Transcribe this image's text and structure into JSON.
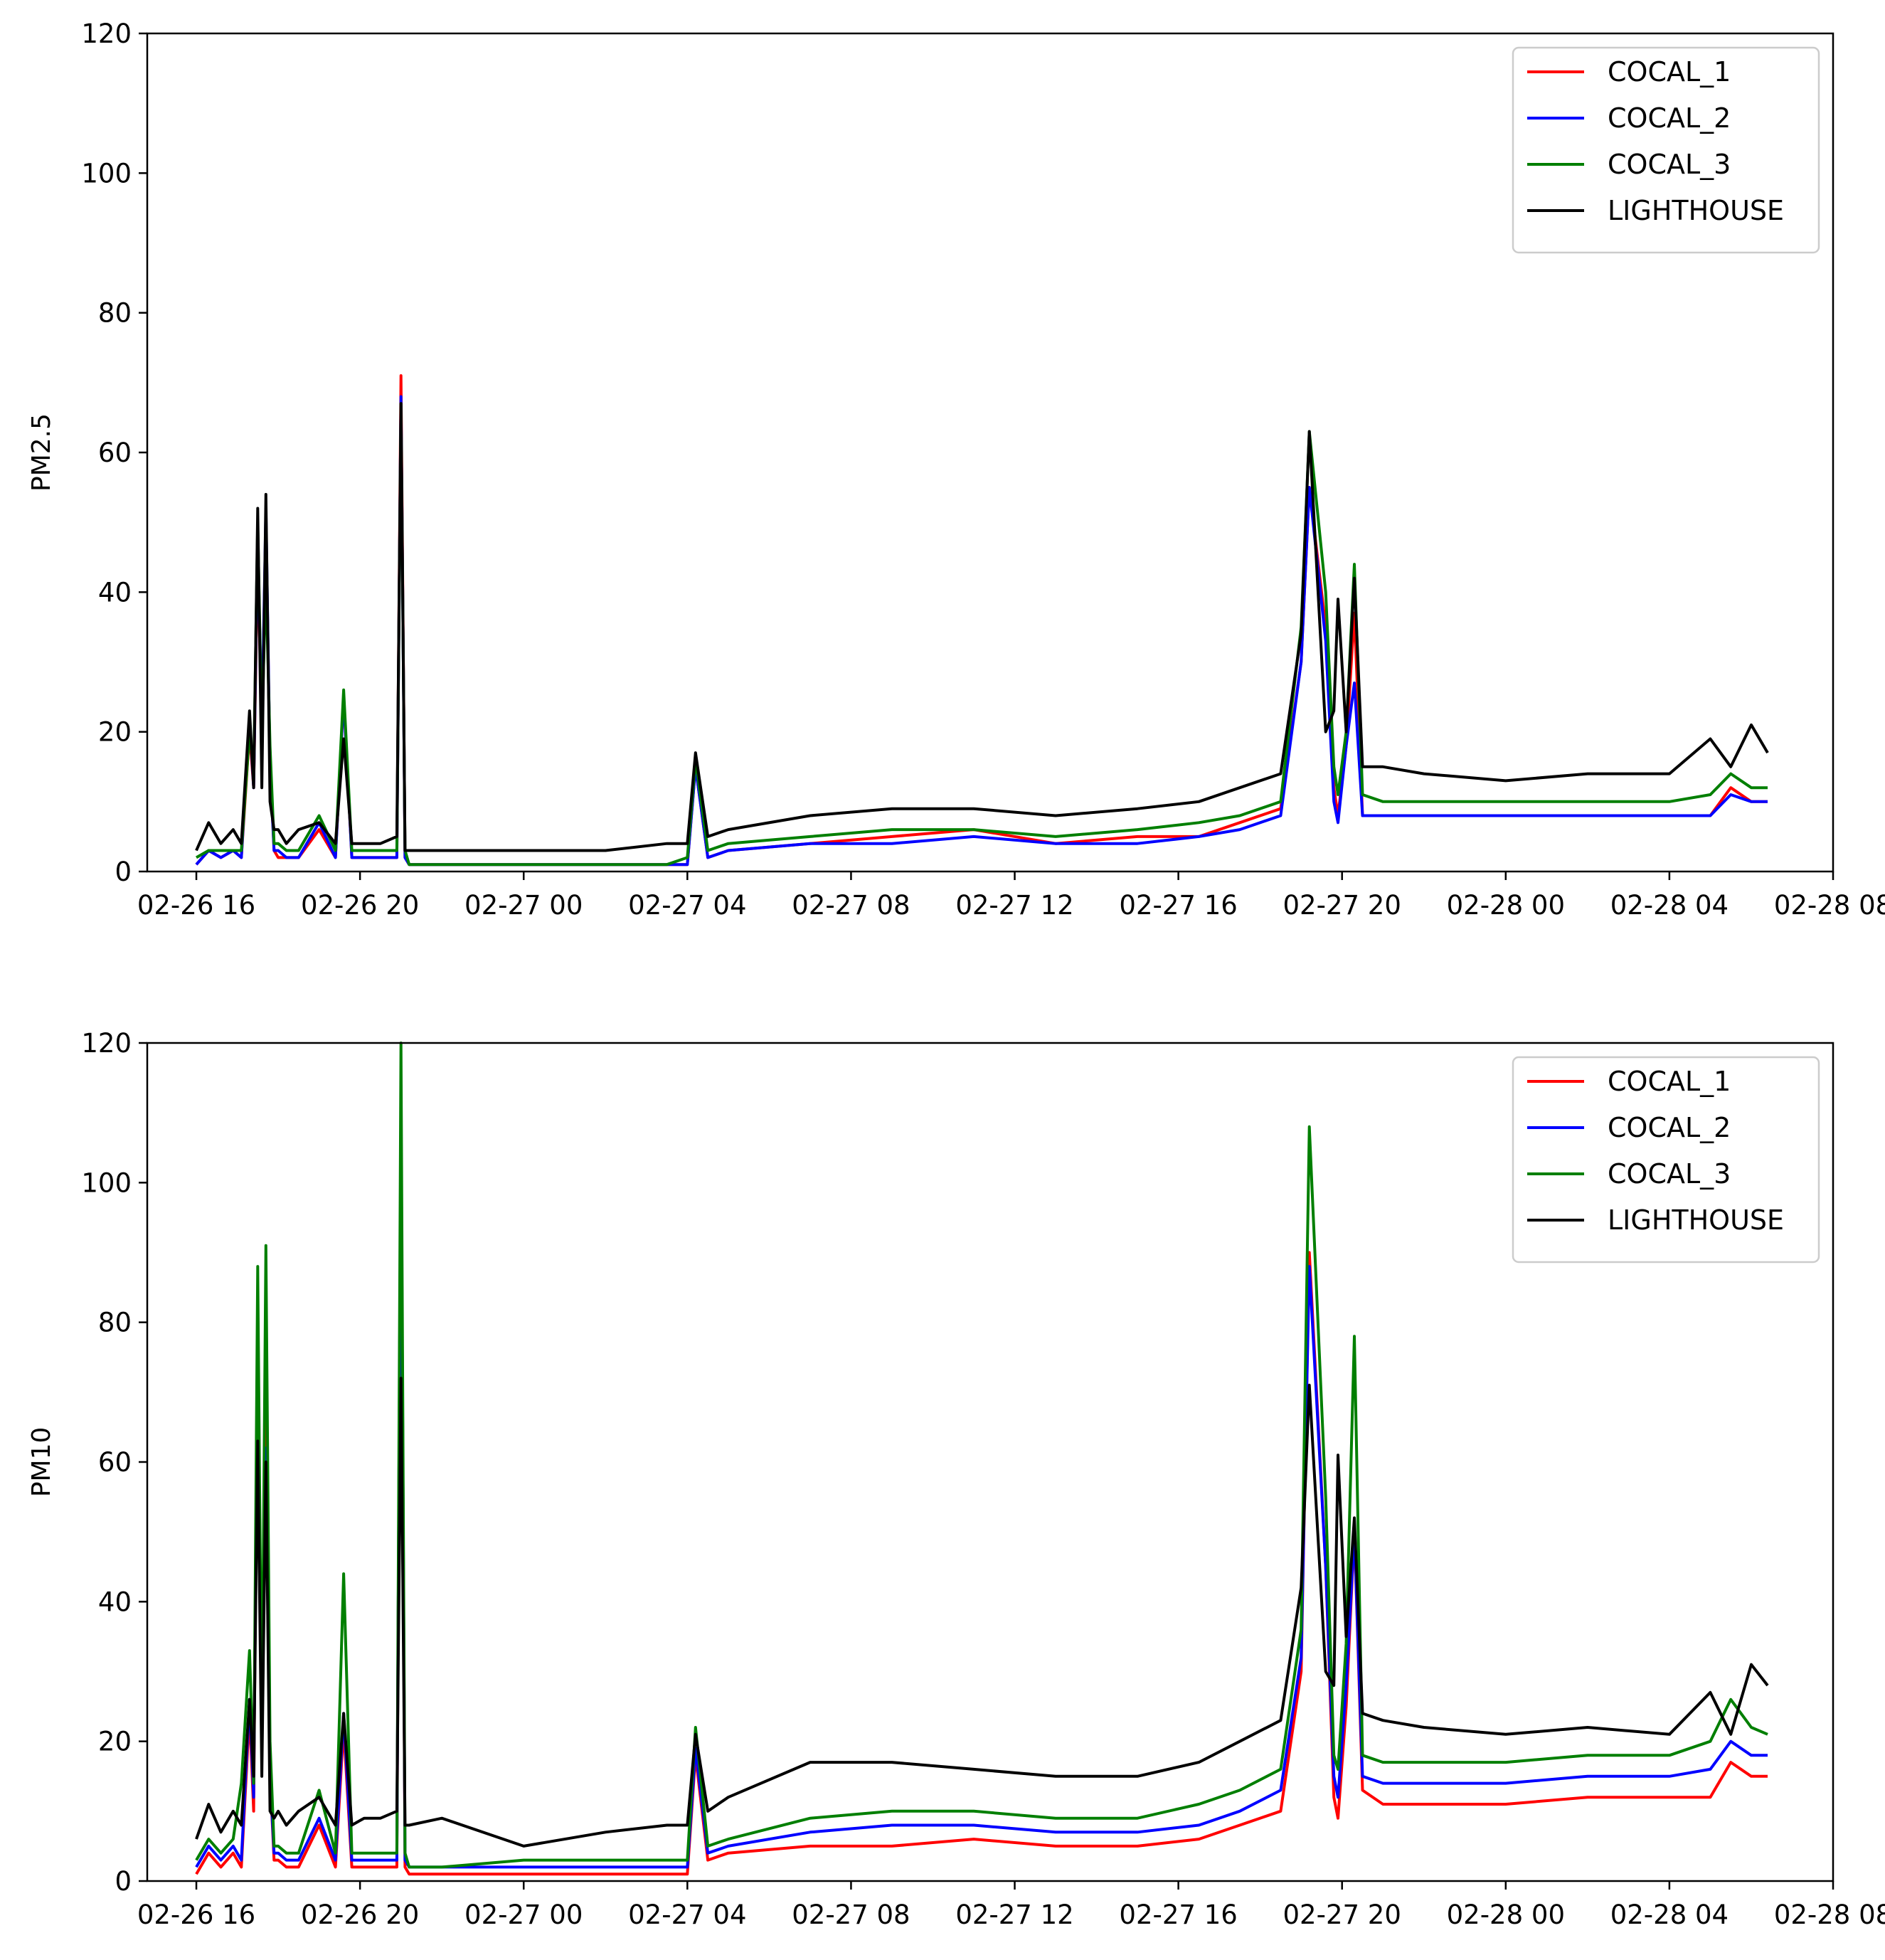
{
  "chart_data": [
    {
      "type": "line",
      "ylabel": "PM2.5",
      "xlabel": "",
      "ylim": [
        0,
        120
      ],
      "yticks": [
        "0",
        "20",
        "40",
        "60",
        "80",
        "100",
        "120"
      ],
      "xlim_hours": [
        -1.2,
        40.0
      ],
      "xticks": [
        {
          "hour": 0,
          "label": "02-26 16"
        },
        {
          "hour": 4,
          "label": "02-26 20"
        },
        {
          "hour": 8,
          "label": "02-27 00"
        },
        {
          "hour": 12,
          "label": "02-27 04"
        },
        {
          "hour": 16,
          "label": "02-27 08"
        },
        {
          "hour": 20,
          "label": "02-27 12"
        },
        {
          "hour": 24,
          "label": "02-27 16"
        },
        {
          "hour": 28,
          "label": "02-27 20"
        },
        {
          "hour": 32,
          "label": "02-28 00"
        },
        {
          "hour": 36,
          "label": "02-28 04"
        },
        {
          "hour": 40,
          "label": "02-28 08"
        }
      ],
      "legend_position": "top-right",
      "x_unit": "hours since 02-26 16:00",
      "series": [
        {
          "name": "COCAL_1",
          "color": "#ff0000",
          "x": [
            0,
            0.3,
            0.6,
            0.9,
            1.1,
            1.3,
            1.4,
            1.5,
            1.6,
            1.7,
            1.8,
            1.9,
            2.0,
            2.2,
            2.5,
            3.0,
            3.4,
            3.6,
            3.8,
            4.1,
            4.5,
            4.9,
            5.0,
            5.1,
            5.2,
            6,
            8,
            10,
            11.5,
            12.0,
            12.2,
            12.5,
            13,
            15,
            17,
            19,
            21,
            23,
            24.5,
            25.5,
            26.5,
            27.0,
            27.2,
            27.6,
            27.8,
            27.9,
            28.1,
            28.3,
            28.5,
            29,
            30,
            32,
            34,
            36,
            37,
            37.5,
            38.0,
            38.4
          ],
          "y": [
            1,
            3,
            2,
            3,
            2,
            20,
            12,
            45,
            20,
            50,
            15,
            3,
            2,
            2,
            2,
            6,
            2,
            25,
            2,
            2,
            2,
            2,
            71,
            2,
            1,
            1,
            1,
            1,
            1,
            1,
            15,
            2,
            3,
            4,
            5,
            6,
            4,
            5,
            5,
            7,
            9,
            30,
            55,
            35,
            12,
            8,
            18,
            37,
            8,
            8,
            8,
            8,
            8,
            8,
            8,
            12,
            10,
            10
          ]
        },
        {
          "name": "COCAL_2",
          "color": "#0000ff",
          "x": [
            0,
            0.3,
            0.6,
            0.9,
            1.1,
            1.3,
            1.4,
            1.5,
            1.6,
            1.7,
            1.8,
            1.9,
            2.0,
            2.2,
            2.5,
            3.0,
            3.4,
            3.6,
            3.8,
            4.1,
            4.5,
            4.9,
            5.0,
            5.1,
            5.2,
            6,
            8,
            10,
            11.5,
            12.0,
            12.2,
            12.5,
            13,
            15,
            17,
            19,
            21,
            23,
            24.5,
            25.5,
            26.5,
            27.0,
            27.2,
            27.6,
            27.8,
            27.9,
            28.1,
            28.3,
            28.5,
            29,
            30,
            32,
            34,
            36,
            37,
            37.5,
            38.0,
            38.4
          ],
          "y": [
            1,
            3,
            2,
            3,
            2,
            22,
            12,
            48,
            20,
            52,
            15,
            3,
            3,
            2,
            2,
            7,
            2,
            25,
            2,
            2,
            2,
            2,
            68,
            2,
            1,
            1,
            1,
            1,
            1,
            1,
            15,
            2,
            3,
            4,
            4,
            5,
            4,
            4,
            5,
            6,
            8,
            30,
            55,
            33,
            10,
            7,
            18,
            27,
            8,
            8,
            8,
            8,
            8,
            8,
            8,
            11,
            10,
            10
          ]
        },
        {
          "name": "COCAL_3",
          "color": "#007f00",
          "x": [
            0,
            0.3,
            0.6,
            0.9,
            1.1,
            1.3,
            1.4,
            1.5,
            1.6,
            1.7,
            1.8,
            1.9,
            2.0,
            2.2,
            2.5,
            3.0,
            3.4,
            3.6,
            3.8,
            4.1,
            4.5,
            4.9,
            5.0,
            5.1,
            5.2,
            6,
            8,
            10,
            11.5,
            12.0,
            12.2,
            12.5,
            13,
            15,
            17,
            19,
            21,
            23,
            24.5,
            25.5,
            26.5,
            27.0,
            27.2,
            27.6,
            27.8,
            27.9,
            28.1,
            28.3,
            28.5,
            29,
            30,
            32,
            34,
            36,
            37,
            37.5,
            38.0,
            38.4
          ],
          "y": [
            2,
            3,
            3,
            3,
            3,
            20,
            14,
            50,
            20,
            42,
            18,
            4,
            4,
            3,
            3,
            8,
            3,
            26,
            3,
            3,
            3,
            3,
            67,
            3,
            1,
            1,
            1,
            1,
            1,
            2,
            16,
            3,
            4,
            5,
            6,
            6,
            5,
            6,
            7,
            8,
            10,
            35,
            63,
            40,
            15,
            11,
            20,
            44,
            11,
            10,
            10,
            10,
            10,
            10,
            11,
            14,
            12,
            12
          ]
        },
        {
          "name": "LIGHTHOUSE",
          "color": "#000000",
          "x": [
            0,
            0.3,
            0.6,
            0.9,
            1.1,
            1.3,
            1.4,
            1.5,
            1.6,
            1.7,
            1.8,
            1.9,
            2.0,
            2.2,
            2.5,
            3.0,
            3.4,
            3.6,
            3.8,
            4.1,
            4.5,
            4.9,
            5.0,
            5.1,
            5.2,
            6,
            8,
            10,
            11.5,
            12.0,
            12.2,
            12.5,
            13,
            15,
            17,
            19,
            21,
            23,
            24.5,
            25.5,
            26.5,
            27.0,
            27.2,
            27.6,
            27.8,
            27.9,
            28.1,
            28.3,
            28.5,
            29,
            30,
            32,
            34,
            36,
            37,
            37.5,
            38.0,
            38.4
          ],
          "y": [
            3,
            7,
            4,
            6,
            4,
            23,
            12,
            52,
            12,
            54,
            10,
            6,
            6,
            4,
            6,
            7,
            4,
            19,
            4,
            4,
            4,
            5,
            67,
            3,
            3,
            3,
            3,
            3,
            4,
            4,
            17,
            5,
            6,
            8,
            9,
            9,
            8,
            9,
            10,
            12,
            14,
            34,
            63,
            20,
            23,
            39,
            20,
            42,
            15,
            15,
            14,
            13,
            14,
            14,
            19,
            15,
            21,
            17
          ]
        }
      ]
    },
    {
      "type": "line",
      "ylabel": "PM10",
      "xlabel": "",
      "ylim": [
        0,
        120
      ],
      "yticks": [
        "0",
        "20",
        "40",
        "60",
        "80",
        "100",
        "120"
      ],
      "xlim_hours": [
        -1.2,
        40.0
      ],
      "xticks": [
        {
          "hour": 0,
          "label": "02-26 16"
        },
        {
          "hour": 4,
          "label": "02-26 20"
        },
        {
          "hour": 8,
          "label": "02-27 00"
        },
        {
          "hour": 12,
          "label": "02-27 04"
        },
        {
          "hour": 16,
          "label": "02-27 08"
        },
        {
          "hour": 20,
          "label": "02-27 12"
        },
        {
          "hour": 24,
          "label": "02-27 16"
        },
        {
          "hour": 28,
          "label": "02-27 20"
        },
        {
          "hour": 32,
          "label": "02-28 00"
        },
        {
          "hour": 36,
          "label": "02-28 04"
        },
        {
          "hour": 40,
          "label": "02-28 08"
        }
      ],
      "legend_position": "top-right",
      "x_unit": "hours since 02-26 16:00",
      "series": [
        {
          "name": "COCAL_1",
          "color": "#ff0000",
          "x": [
            0,
            0.3,
            0.6,
            0.9,
            1.1,
            1.3,
            1.4,
            1.5,
            1.6,
            1.7,
            1.8,
            1.9,
            2.0,
            2.2,
            2.5,
            3.0,
            3.4,
            3.6,
            3.8,
            4.1,
            4.5,
            4.9,
            5.0,
            5.1,
            5.2,
            6,
            8,
            10,
            11.5,
            12.0,
            12.2,
            12.5,
            13,
            15,
            17,
            19,
            21,
            23,
            24.5,
            25.5,
            26.5,
            27.0,
            27.2,
            27.6,
            27.8,
            27.9,
            28.1,
            28.3,
            28.5,
            29,
            30,
            32,
            34,
            36,
            37,
            37.5,
            38.0,
            38.4
          ],
          "y": [
            1,
            4,
            2,
            4,
            2,
            24,
            10,
            80,
            20,
            80,
            15,
            3,
            3,
            2,
            2,
            8,
            2,
            22,
            2,
            2,
            2,
            2,
            110,
            2,
            1,
            1,
            1,
            1,
            1,
            1,
            18,
            3,
            4,
            5,
            5,
            6,
            5,
            5,
            6,
            8,
            10,
            30,
            90,
            45,
            12,
            9,
            25,
            50,
            13,
            11,
            11,
            11,
            12,
            12,
            12,
            17,
            15,
            15
          ]
        },
        {
          "name": "COCAL_2",
          "color": "#0000ff",
          "x": [
            0,
            0.3,
            0.6,
            0.9,
            1.1,
            1.3,
            1.4,
            1.5,
            1.6,
            1.7,
            1.8,
            1.9,
            2.0,
            2.2,
            2.5,
            3.0,
            3.4,
            3.6,
            3.8,
            4.1,
            4.5,
            4.9,
            5.0,
            5.1,
            5.2,
            6,
            8,
            10,
            11.5,
            12.0,
            12.2,
            12.5,
            13,
            15,
            17,
            19,
            21,
            23,
            24.5,
            25.5,
            26.5,
            27.0,
            27.2,
            27.6,
            27.8,
            27.9,
            28.1,
            28.3,
            28.5,
            29,
            30,
            32,
            34,
            36,
            37,
            37.5,
            38.0,
            38.4
          ],
          "y": [
            2,
            5,
            3,
            5,
            3,
            26,
            12,
            78,
            20,
            62,
            15,
            4,
            4,
            3,
            3,
            9,
            3,
            24,
            3,
            3,
            3,
            3,
            110,
            3,
            2,
            2,
            2,
            2,
            2,
            2,
            19,
            4,
            5,
            7,
            8,
            8,
            7,
            7,
            8,
            10,
            13,
            32,
            88,
            45,
            15,
            12,
            28,
            50,
            15,
            14,
            14,
            14,
            15,
            15,
            16,
            20,
            18,
            18
          ]
        },
        {
          "name": "COCAL_3",
          "color": "#007f00",
          "x": [
            0,
            0.3,
            0.6,
            0.9,
            1.1,
            1.3,
            1.4,
            1.5,
            1.6,
            1.7,
            1.8,
            1.9,
            2.0,
            2.2,
            2.5,
            3.0,
            3.4,
            3.6,
            3.8,
            4.1,
            4.5,
            4.9,
            5.0,
            5.1,
            5.2,
            6,
            8,
            10,
            11.5,
            12.0,
            12.2,
            12.5,
            13,
            15,
            17,
            19,
            21,
            23,
            24.5,
            25.5,
            26.5,
            27.0,
            27.2,
            27.6,
            27.8,
            27.9,
            28.1,
            28.3,
            28.5,
            29,
            30,
            32,
            34,
            36,
            37,
            37.5,
            38.0,
            38.4
          ],
          "y": [
            3,
            6,
            4,
            6,
            14,
            33,
            14,
            88,
            20,
            91,
            20,
            5,
            5,
            4,
            4,
            13,
            4,
            44,
            4,
            4,
            4,
            4,
            120,
            4,
            2,
            2,
            3,
            3,
            3,
            3,
            22,
            5,
            6,
            9,
            10,
            10,
            9,
            9,
            11,
            13,
            16,
            36,
            108,
            55,
            18,
            16,
            34,
            78,
            18,
            17,
            17,
            17,
            18,
            18,
            20,
            26,
            22,
            21
          ]
        },
        {
          "name": "LIGHTHOUSE",
          "color": "#000000",
          "x": [
            0,
            0.3,
            0.6,
            0.9,
            1.1,
            1.3,
            1.4,
            1.5,
            1.6,
            1.7,
            1.8,
            1.9,
            2.0,
            2.2,
            2.5,
            3.0,
            3.4,
            3.6,
            3.8,
            4.1,
            4.5,
            4.9,
            5.0,
            5.1,
            5.2,
            6,
            8,
            10,
            11.5,
            12.0,
            12.2,
            12.5,
            13,
            15,
            17,
            19,
            21,
            23,
            24.5,
            25.5,
            26.5,
            27.0,
            27.2,
            27.6,
            27.8,
            27.9,
            28.1,
            28.3,
            28.5,
            29,
            30,
            32,
            34,
            36,
            37,
            37.5,
            38.0,
            38.4
          ],
          "y": [
            6,
            11,
            7,
            10,
            8,
            26,
            15,
            63,
            15,
            60,
            10,
            9,
            10,
            8,
            10,
            12,
            8,
            24,
            8,
            9,
            9,
            10,
            72,
            8,
            8,
            9,
            5,
            7,
            8,
            8,
            21,
            10,
            12,
            17,
            17,
            16,
            15,
            15,
            17,
            20,
            23,
            42,
            71,
            30,
            28,
            61,
            35,
            52,
            24,
            23,
            22,
            21,
            22,
            21,
            27,
            21,
            31,
            28
          ]
        }
      ]
    }
  ]
}
